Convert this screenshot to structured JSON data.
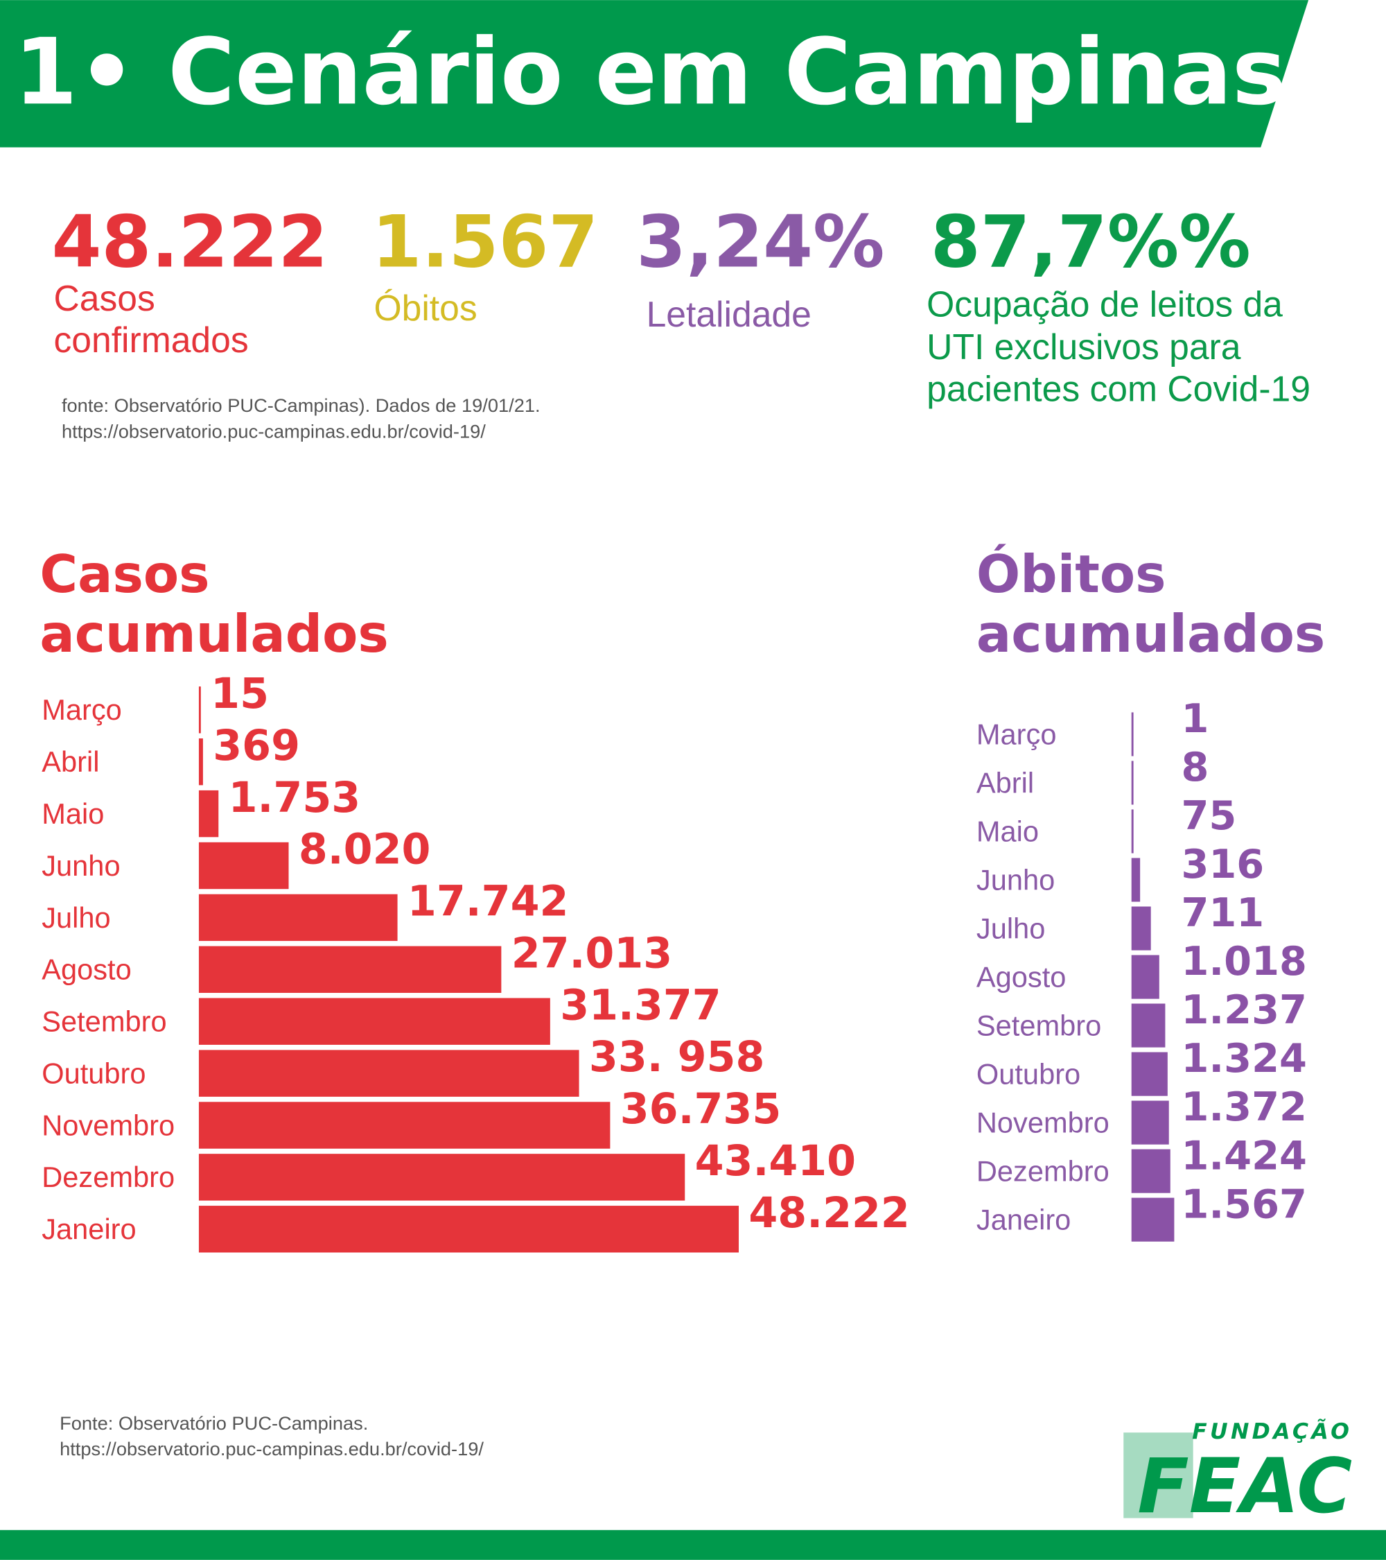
{
  "header": {
    "title": "1• Cenário em Campinas"
  },
  "stats": [
    {
      "value": "48.222",
      "label": [
        "Casos",
        "confirmados"
      ],
      "color": "#e5343a"
    },
    {
      "value": "1.567",
      "label": [
        "Óbitos"
      ],
      "color": "#d4bb24"
    },
    {
      "value": "3,24%",
      "label": [
        "Letalidade"
      ],
      "color": "#8a5aa6"
    },
    {
      "value": "87,7%%",
      "label": [
        "Ocupação de leitos da",
        "UTI exclusivos para",
        "pacientes com Covid-19"
      ],
      "color": "#0b9a4a"
    }
  ],
  "source_top": [
    "fonte: Observatório PUC-Campinas). Dados de 19/01/21.",
    "https://observatorio.puc-campinas.edu.br/covid-19/"
  ],
  "chart_data": [
    {
      "type": "bar",
      "orientation": "horizontal",
      "title": [
        "Casos",
        "acumulados"
      ],
      "categories": [
        "Março",
        "Abril",
        "Maio",
        "Junho",
        "Julho",
        "Agosto",
        "Setembro",
        "Outubro",
        "Novembro",
        "Dezembro",
        "Janeiro"
      ],
      "values": [
        15,
        369,
        1753,
        8020,
        17742,
        27013,
        31377,
        33958,
        36735,
        43410,
        48222
      ],
      "value_labels": [
        "15",
        "369",
        "1.753",
        "8.020",
        "17.742",
        "27.013",
        "31.377",
        "33. 958",
        "36.735",
        "43.410",
        "48.222"
      ],
      "color": "#e5343a"
    },
    {
      "type": "bar",
      "orientation": "horizontal",
      "title": [
        "Óbitos",
        "acumulados"
      ],
      "categories": [
        "Março",
        "Abril",
        "Maio",
        "Junho",
        "Julho",
        "Agosto",
        "Setembro",
        "Outubro",
        "Novembro",
        "Dezembro",
        "Janeiro"
      ],
      "values": [
        1,
        8,
        75,
        316,
        711,
        1018,
        1237,
        1324,
        1372,
        1424,
        1567
      ],
      "value_labels": [
        "1",
        "8",
        "75",
        "316",
        "711",
        "1.018",
        "1.237",
        "1.324",
        "1.372",
        "1.424",
        "1.567"
      ],
      "color": "#8a52a6"
    }
  ],
  "source_bottom": [
    "Fonte: Observatório PUC-Campinas.",
    "https://observatorio.puc-campinas.edu.br/covid-19/"
  ],
  "logo": {
    "top": "FUNDAÇÃO",
    "main": "FEAC"
  }
}
